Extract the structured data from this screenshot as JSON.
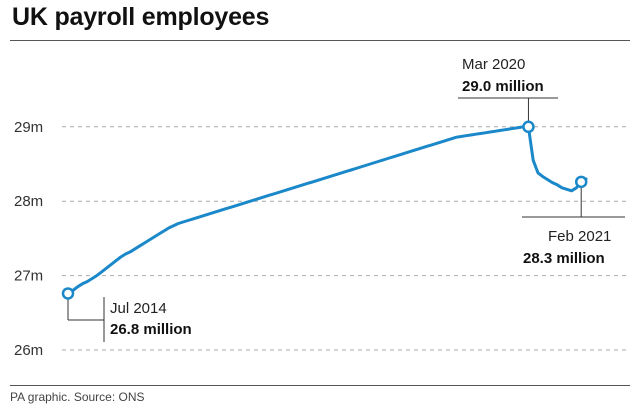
{
  "title": "UK payroll employees",
  "source": "PA graphic. Source: ONS",
  "colors": {
    "line": "#1a88c9",
    "grid": "#aaaaaa",
    "text": "#222222"
  },
  "chart_data": {
    "type": "line",
    "title": "UK payroll employees",
    "xlabel": "",
    "ylabel": "",
    "ylim": [
      26,
      29.4
    ],
    "yticks": [
      {
        "value": 26,
        "label": "26m"
      },
      {
        "value": 27,
        "label": "27m"
      },
      {
        "value": 28,
        "label": "28m"
      },
      {
        "value": 29,
        "label": "29m"
      }
    ],
    "grid": true,
    "series": [
      {
        "values": [
          26.76,
          26.8,
          26.85,
          26.89,
          26.92,
          26.96,
          27.0,
          27.05,
          27.1,
          27.15,
          27.2,
          27.25,
          27.29,
          27.32,
          27.36,
          27.4,
          27.44,
          27.48,
          27.52,
          27.56,
          27.6,
          27.64,
          27.67,
          27.7,
          27.72,
          27.74,
          27.76,
          27.78,
          27.8,
          27.82,
          27.84,
          27.86,
          27.88,
          27.9,
          27.92,
          27.94,
          27.96,
          27.98,
          28.0,
          28.02,
          28.04,
          28.06,
          28.08,
          28.1,
          28.12,
          28.14,
          28.16,
          28.18,
          28.2,
          28.22,
          28.24,
          28.26,
          28.28,
          28.3,
          28.32,
          28.34,
          28.36,
          28.38,
          28.4,
          28.42,
          28.44,
          28.46,
          28.48,
          28.5,
          28.52,
          28.54,
          28.56,
          28.58,
          28.6,
          28.62,
          28.64,
          28.66,
          28.68,
          28.7,
          28.72,
          28.74,
          28.76,
          28.78,
          28.8,
          28.82,
          28.84,
          28.86,
          28.87,
          28.88,
          28.89,
          28.9,
          28.91,
          28.92,
          28.93,
          28.94,
          28.95,
          28.96,
          28.97,
          28.98,
          28.99,
          29.0,
          29.0,
          28.55,
          28.38,
          28.33,
          28.29,
          28.25,
          28.22,
          28.18,
          28.16,
          28.14,
          28.18,
          28.26,
          28.3
        ]
      }
    ],
    "annotations": [
      {
        "date": "Jul 2014",
        "value_label": "26.8 million",
        "point_index": 0
      },
      {
        "date": "Mar 2020",
        "value_label": "29.0 million",
        "point_index": 96
      },
      {
        "date": "Feb 2021",
        "value_label": "28.3 million",
        "point_index": 107
      }
    ]
  }
}
